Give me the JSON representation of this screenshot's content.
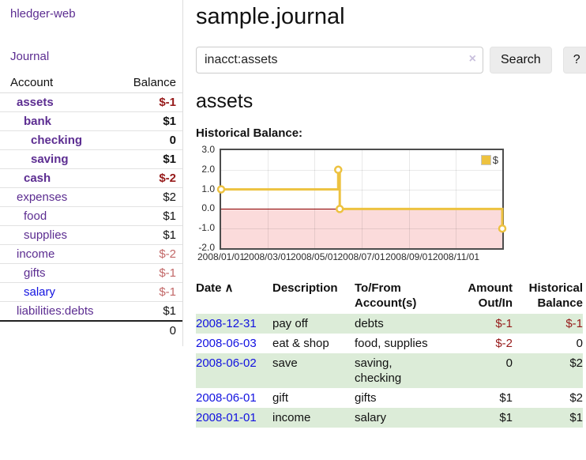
{
  "sidebar": {
    "brand": "hledger-web",
    "journal_link": "Journal",
    "accounts_table": {
      "headers": {
        "account": "Account",
        "balance": "Balance"
      },
      "rows": [
        {
          "name": "assets",
          "depth": 1,
          "bold": true,
          "link_color": "purple",
          "balance": "$-1",
          "balance_style": "neg-strong"
        },
        {
          "name": "bank",
          "depth": 2,
          "bold": true,
          "link_color": "purple",
          "balance": "$1",
          "balance_style": "pos-strong"
        },
        {
          "name": "checking",
          "depth": 3,
          "bold": true,
          "link_color": "purple",
          "balance": "0",
          "balance_style": "pos-strong"
        },
        {
          "name": "saving",
          "depth": 3,
          "bold": true,
          "link_color": "purple",
          "balance": "$1",
          "balance_style": "pos-strong"
        },
        {
          "name": "cash",
          "depth": 2,
          "bold": true,
          "link_color": "purple",
          "balance": "$-2",
          "balance_style": "neg-strong"
        },
        {
          "name": "expenses",
          "depth": 1,
          "bold": false,
          "link_color": "purple",
          "balance": "$2",
          "balance_style": "pos"
        },
        {
          "name": "food",
          "depth": 2,
          "bold": false,
          "link_color": "purple",
          "balance": "$1",
          "balance_style": "pos"
        },
        {
          "name": "supplies",
          "depth": 2,
          "bold": false,
          "link_color": "purple",
          "balance": "$1",
          "balance_style": "pos"
        },
        {
          "name": "income",
          "depth": 1,
          "bold": false,
          "link_color": "purple",
          "balance": "$-2",
          "balance_style": "neg-muted"
        },
        {
          "name": "gifts",
          "depth": 2,
          "bold": false,
          "link_color": "purple",
          "balance": "$-1",
          "balance_style": "neg-muted"
        },
        {
          "name": "salary",
          "depth": 2,
          "bold": false,
          "link_color": "blue",
          "balance": "$-1",
          "balance_style": "neg-muted"
        },
        {
          "name": "liabilities:debts",
          "depth": 1,
          "bold": false,
          "link_color": "purple",
          "balance": "$1",
          "balance_style": "pos"
        }
      ],
      "total": "0"
    }
  },
  "main": {
    "title": "sample.journal",
    "search": {
      "value": "inacct:assets",
      "clear_icon": "×",
      "search_button": "Search",
      "help_button": "?"
    },
    "account_heading": "assets",
    "chart_label": "Historical Balance:"
  },
  "chart_data": {
    "type": "line",
    "step": true,
    "title": "Historical Balance of assets",
    "series": [
      {
        "name": "$",
        "color": "#edc240",
        "x": [
          "2008-01-01",
          "2008-06-01",
          "2008-06-03",
          "2008-12-31"
        ],
        "values": [
          1,
          2,
          0,
          -1
        ]
      }
    ],
    "ylim": [
      -2,
      3
    ],
    "xrange": [
      "2008-01-01",
      "2008-12-31"
    ],
    "yticks": [
      "3.0",
      "2.0",
      "1.0",
      "0.0",
      "-1.0",
      "-2.0"
    ],
    "xticks": [
      "2008/01/01",
      "2008/03/01",
      "2008/05/01",
      "2008/07/01",
      "2008/09/01",
      "2008/11/01"
    ],
    "legend_position": "top-right",
    "grid": true,
    "negative_region_color": "#fbdbdb",
    "zero_line_color": "#8b0000"
  },
  "transactions": {
    "headers": {
      "date": "Date",
      "sort_icon": "∧",
      "description": "Description",
      "tofrom": "To/From Account(s)",
      "amount": "Amount Out/In",
      "balance": "Historical Balance"
    },
    "rows": [
      {
        "date": "2008-12-31",
        "description": "pay off",
        "accounts": "debts",
        "amount": "$-1",
        "amount_neg": true,
        "balance": "$-1",
        "balance_neg": true
      },
      {
        "date": "2008-06-03",
        "description": "eat & shop",
        "accounts": "food, supplies",
        "amount": "$-2",
        "amount_neg": true,
        "balance": "0",
        "balance_neg": false
      },
      {
        "date": "2008-06-02",
        "description": "save",
        "accounts": "saving, checking",
        "amount": "0",
        "amount_neg": false,
        "balance": "$2",
        "balance_neg": false
      },
      {
        "date": "2008-06-01",
        "description": "gift",
        "accounts": "gifts",
        "amount": "$1",
        "amount_neg": false,
        "balance": "$2",
        "balance_neg": false
      },
      {
        "date": "2008-01-01",
        "description": "income",
        "accounts": "salary",
        "amount": "$1",
        "amount_neg": false,
        "balance": "$1",
        "balance_neg": false
      }
    ]
  }
}
